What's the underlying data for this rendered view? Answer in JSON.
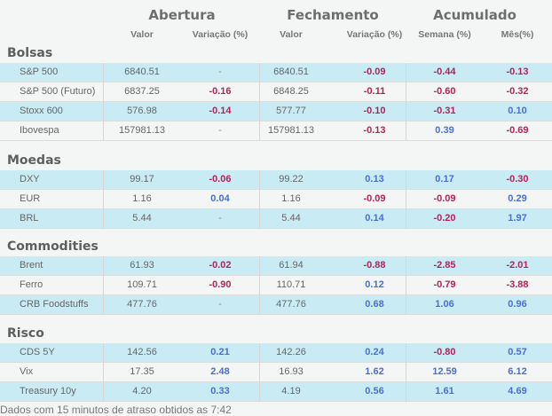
{
  "header": {
    "groups": [
      "Abertura",
      "Fechamento",
      "Acumulado"
    ],
    "columns": [
      "Valor",
      "Variação (%)",
      "Valor",
      "Variação (%)",
      "Semana (%)",
      "Mês(%)"
    ]
  },
  "colors": {
    "negative": "#b3235a",
    "positive": "#4a6fd1",
    "highlight": "#c9ebf4"
  },
  "sections": [
    {
      "title": "Bolsas",
      "rows": [
        [
          "S&P 500",
          "6840.51",
          "-",
          "6840.51",
          "-0.09",
          "-0.44",
          "-0.13"
        ],
        [
          "S&P 500 (Futuro)",
          "6837.25",
          "-0.16",
          "6848.25",
          "-0.11",
          "-0.60",
          "-0.32"
        ],
        [
          "Stoxx 600",
          "576.98",
          "-0.14",
          "577.77",
          "-0.10",
          "-0.31",
          "0.10"
        ],
        [
          "Ibovespa",
          "157981.13",
          "-",
          "157981.13",
          "-0.13",
          "0.39",
          "-0.69"
        ]
      ]
    },
    {
      "title": "Moedas",
      "rows": [
        [
          "DXY",
          "99.17",
          "-0.06",
          "99.22",
          "0.13",
          "0.17",
          "-0.30"
        ],
        [
          "EUR",
          "1.16",
          "0.04",
          "1.16",
          "-0.09",
          "-0.09",
          "0.29"
        ],
        [
          "BRL",
          "5.44",
          "-",
          "5.44",
          "0.14",
          "-0.20",
          "1.97"
        ]
      ]
    },
    {
      "title": "Commodities",
      "rows": [
        [
          "Brent",
          "61.93",
          "-0.02",
          "61.94",
          "-0.88",
          "-2.85",
          "-2.01"
        ],
        [
          "Ferro",
          "109.71",
          "-0.90",
          "110.71",
          "0.12",
          "-0.79",
          "-3.88"
        ],
        [
          "CRB Foodstuffs",
          "477.76",
          "-",
          "477.76",
          "0.68",
          "1.06",
          "0.96"
        ]
      ]
    },
    {
      "title": "Risco",
      "rows": [
        [
          "CDS 5Y",
          "142.56",
          "0.21",
          "142.26",
          "0.24",
          "-0.80",
          "0.57"
        ],
        [
          "Vix",
          "17.35",
          "2.48",
          "16.93",
          "1.62",
          "12.59",
          "6.12"
        ],
        [
          "Treasury 10y",
          "4.20",
          "0.33",
          "4.19",
          "0.56",
          "1.61",
          "4.69"
        ]
      ]
    }
  ],
  "footer": "Dados com 15 minutos de atraso obtidos as 7:42"
}
